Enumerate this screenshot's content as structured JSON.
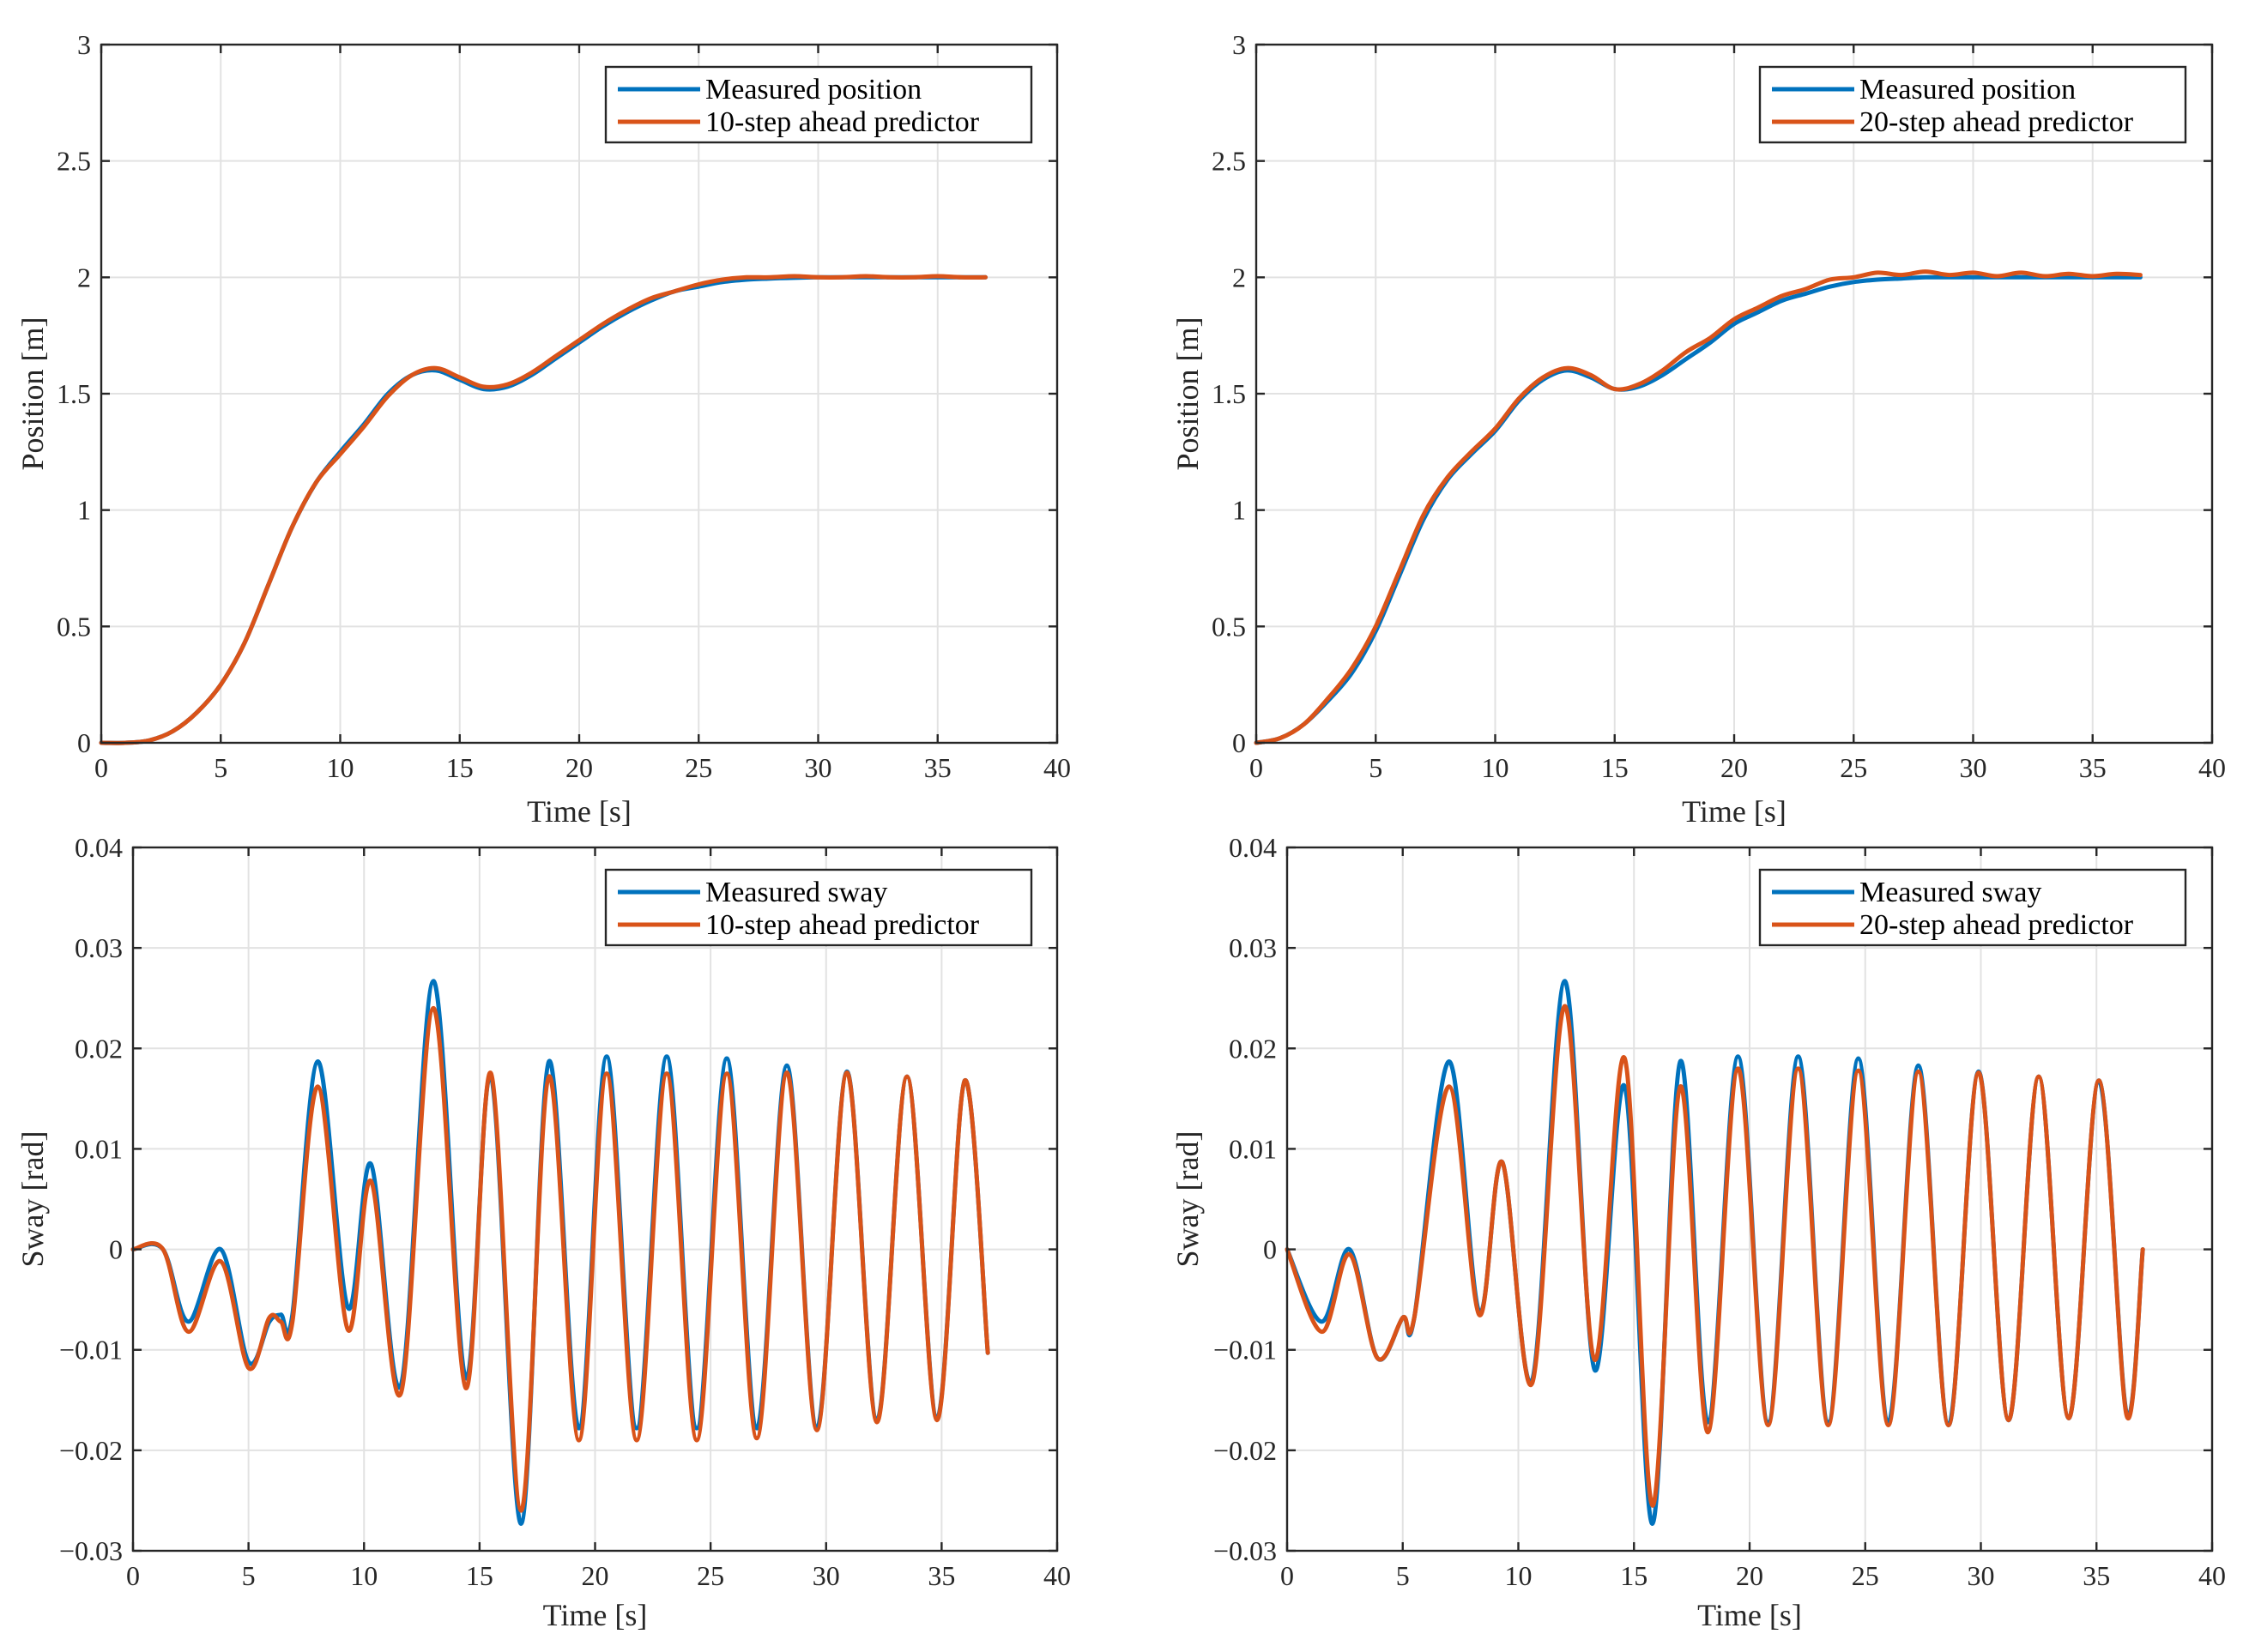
{
  "colors": {
    "measured": "#0072BD",
    "predictor": "#D95319"
  },
  "chart_data": [
    {
      "id": "position-10",
      "type": "line",
      "xlabel": "Time [s]",
      "ylabel": "Position [m]",
      "xlim": [
        0,
        40
      ],
      "ylim": [
        0,
        3
      ],
      "xticks": [
        0,
        5,
        10,
        15,
        20,
        25,
        30,
        35,
        40
      ],
      "yticks": [
        0,
        0.5,
        1,
        1.5,
        2,
        2.5,
        3
      ],
      "ytick_labels": [
        "0",
        "0.5",
        "1",
        "1.5",
        "2",
        "2.5",
        "3"
      ],
      "grid": true,
      "legend_position": "top-right",
      "legend": [
        "Measured position",
        "10-step ahead predictor"
      ],
      "series": [
        {
          "name": "Measured position",
          "x": [
            0,
            1,
            2,
            3,
            4,
            5,
            6,
            7,
            8,
            9,
            10,
            11,
            12,
            13,
            14,
            15,
            16,
            17,
            18,
            19,
            20,
            21,
            22,
            23,
            24,
            25,
            26,
            27,
            28,
            29,
            30,
            31,
            32,
            33,
            34,
            35,
            36,
            37
          ],
          "y": [
            0,
            0,
            0.01,
            0.05,
            0.13,
            0.25,
            0.43,
            0.68,
            0.93,
            1.12,
            1.25,
            1.37,
            1.5,
            1.58,
            1.6,
            1.56,
            1.52,
            1.53,
            1.58,
            1.65,
            1.72,
            1.79,
            1.85,
            1.9,
            1.94,
            1.96,
            1.98,
            1.99,
            1.995,
            1.998,
            2,
            2,
            2,
            2,
            2,
            2,
            2,
            2
          ]
        },
        {
          "name": "10-step ahead predictor",
          "x": [
            0,
            1,
            2,
            3,
            4,
            5,
            6,
            7,
            8,
            9,
            10,
            11,
            12,
            13,
            14,
            15,
            16,
            17,
            18,
            19,
            20,
            21,
            22,
            23,
            24,
            25,
            26,
            27,
            28,
            29,
            30,
            31,
            32,
            33,
            34,
            35,
            36,
            37
          ],
          "y": [
            0,
            0,
            0.01,
            0.05,
            0.13,
            0.25,
            0.43,
            0.68,
            0.93,
            1.12,
            1.24,
            1.36,
            1.49,
            1.58,
            1.61,
            1.57,
            1.53,
            1.54,
            1.59,
            1.66,
            1.73,
            1.8,
            1.86,
            1.91,
            1.94,
            1.97,
            1.99,
            2,
            2,
            2.005,
            2,
            2,
            2.005,
            2,
            2,
            2.005,
            2,
            2
          ]
        }
      ]
    },
    {
      "id": "position-20",
      "type": "line",
      "xlabel": "Time [s]",
      "ylabel": "Position [m]",
      "xlim": [
        0,
        40
      ],
      "ylim": [
        0,
        3
      ],
      "xticks": [
        0,
        5,
        10,
        15,
        20,
        25,
        30,
        35,
        40
      ],
      "yticks": [
        0,
        0.5,
        1,
        1.5,
        2,
        2.5,
        3
      ],
      "ytick_labels": [
        "0",
        "0.5",
        "1",
        "1.5",
        "2",
        "2.5",
        "3"
      ],
      "grid": true,
      "legend_position": "top-right",
      "legend": [
        "Measured position",
        "20-step ahead predictor"
      ],
      "series": [
        {
          "name": "Measured position",
          "x": [
            0,
            1,
            2,
            3,
            4,
            5,
            6,
            7,
            8,
            9,
            10,
            11,
            12,
            13,
            14,
            15,
            16,
            17,
            18,
            19,
            20,
            21,
            22,
            23,
            24,
            25,
            26,
            27,
            28,
            29,
            30,
            31,
            32,
            33,
            34,
            35,
            36,
            37
          ],
          "y": [
            0,
            0.02,
            0.08,
            0.18,
            0.3,
            0.48,
            0.72,
            0.96,
            1.13,
            1.24,
            1.34,
            1.47,
            1.56,
            1.6,
            1.57,
            1.52,
            1.53,
            1.58,
            1.65,
            1.72,
            1.8,
            1.85,
            1.9,
            1.93,
            1.96,
            1.98,
            1.99,
            1.995,
            2,
            2,
            2,
            2,
            2,
            2,
            2,
            2,
            2,
            2
          ]
        },
        {
          "name": "20-step ahead predictor",
          "x": [
            0,
            1,
            2,
            3,
            4,
            5,
            6,
            7,
            8,
            9,
            10,
            11,
            12,
            13,
            14,
            15,
            16,
            17,
            18,
            19,
            20,
            21,
            22,
            23,
            24,
            25,
            26,
            27,
            28,
            29,
            30,
            31,
            32,
            33,
            34,
            35,
            36,
            37
          ],
          "y": [
            0,
            0.02,
            0.08,
            0.19,
            0.32,
            0.5,
            0.74,
            0.98,
            1.14,
            1.25,
            1.35,
            1.48,
            1.57,
            1.61,
            1.58,
            1.52,
            1.54,
            1.6,
            1.68,
            1.74,
            1.82,
            1.87,
            1.92,
            1.95,
            1.99,
            2,
            2.02,
            2.01,
            2.025,
            2.01,
            2.02,
            2.005,
            2.02,
            2.005,
            2.015,
            2.005,
            2.015,
            2.01
          ]
        }
      ]
    },
    {
      "id": "sway-10",
      "type": "line",
      "xlabel": "Time [s]",
      "ylabel": "Sway [rad]",
      "xlim": [
        0,
        40
      ],
      "ylim": [
        -0.03,
        0.04
      ],
      "xticks": [
        0,
        5,
        10,
        15,
        20,
        25,
        30,
        35,
        40
      ],
      "yticks": [
        -0.03,
        -0.02,
        -0.01,
        0,
        0.01,
        0.02,
        0.03,
        0.04
      ],
      "ytick_labels": [
        "−0.03",
        "−0.02",
        "−0.01",
        "0",
        "0.01",
        "0.02",
        "0.03",
        "0.04"
      ],
      "grid": true,
      "legend_position": "top-right",
      "legend": [
        "Measured sway",
        "10-step ahead predictor"
      ],
      "series": [
        {
          "name": "Measured sway",
          "x": [
            0,
            1.3,
            2.4,
            3.8,
            5.0,
            5.9,
            6.4,
            6.9,
            8.0,
            9.3,
            10.3,
            11.6,
            13.0,
            14.4,
            15.5,
            16.8,
            18.0,
            19.3,
            20.5,
            21.8,
            23.1,
            24.4,
            25.7,
            27.0,
            28.3,
            29.6,
            30.9,
            32.2,
            33.5,
            34.8,
            36.0,
            37.0
          ],
          "y": [
            0,
            0,
            -0.0072,
            0,
            -0.0112,
            -0.0072,
            -0.0065,
            -0.0065,
            0.0187,
            -0.0058,
            0.0085,
            -0.0135,
            0.0267,
            -0.0128,
            0.0172,
            -0.0273,
            0.0187,
            -0.0178,
            0.0192,
            -0.0178,
            0.0192,
            -0.0178,
            0.019,
            -0.0178,
            0.0183,
            -0.0178,
            0.0177,
            -0.017,
            0.0172,
            -0.0168,
            0.0168,
            -0.0103
          ]
        },
        {
          "name": "10-step ahead predictor",
          "x": [
            0,
            1.3,
            2.4,
            3.8,
            5.0,
            5.9,
            6.4,
            6.9,
            8.0,
            9.3,
            10.3,
            11.6,
            13.0,
            14.4,
            15.5,
            16.8,
            18.0,
            19.3,
            20.5,
            21.8,
            23.1,
            24.4,
            25.7,
            27.0,
            28.3,
            29.6,
            30.9,
            32.2,
            33.5,
            34.8,
            36.0,
            37.0
          ],
          "y": [
            0,
            0,
            -0.0082,
            -0.0012,
            -0.0118,
            -0.0068,
            -0.0072,
            -0.0072,
            0.0162,
            -0.008,
            0.0068,
            -0.0143,
            0.024,
            -0.0138,
            0.0175,
            -0.026,
            0.0172,
            -0.019,
            0.0175,
            -0.019,
            0.0175,
            -0.019,
            0.0175,
            -0.0188,
            0.0176,
            -0.018,
            0.0176,
            -0.0172,
            0.0172,
            -0.017,
            0.0168,
            -0.0103
          ]
        }
      ]
    },
    {
      "id": "sway-20",
      "type": "line",
      "xlabel": "Time [s]",
      "ylabel": "Sway [rad]",
      "xlim": [
        0,
        40
      ],
      "ylim": [
        -0.03,
        0.04
      ],
      "xticks": [
        0,
        5,
        10,
        15,
        20,
        25,
        30,
        35,
        40
      ],
      "yticks": [
        -0.03,
        -0.02,
        -0.01,
        0,
        0.01,
        0.02,
        0.03,
        0.04
      ],
      "ytick_labels": [
        "−0.03",
        "−0.02",
        "−0.01",
        "0",
        "0.01",
        "0.02",
        "0.03",
        "0.04"
      ],
      "grid": true,
      "legend_position": "top-right",
      "legend": [
        "Measured sway",
        "20-step ahead predictor"
      ],
      "series": [
        {
          "name": "Measured sway",
          "x": [
            0,
            1.5,
            2.7,
            3.9,
            5.0,
            5.5,
            7.0,
            8.3,
            9.3,
            10.6,
            12.0,
            13.3,
            14.6,
            15.8,
            17.0,
            18.2,
            19.5,
            20.8,
            22.1,
            23.4,
            24.7,
            26.0,
            27.3,
            28.6,
            29.9,
            31.2,
            32.5,
            33.8,
            35.1,
            36.3,
            37.0
          ],
          "y": [
            0,
            -0.0072,
            0,
            -0.0108,
            -0.0068,
            -0.0068,
            0.0187,
            -0.0062,
            0.0087,
            -0.013,
            0.0267,
            -0.012,
            0.0162,
            -0.0273,
            0.0187,
            -0.0172,
            0.0192,
            -0.0172,
            0.0192,
            -0.0172,
            0.019,
            -0.0172,
            0.0183,
            -0.0175,
            0.0177,
            -0.017,
            0.0172,
            -0.0168,
            0.0168,
            -0.0163,
            0
          ]
        },
        {
          "name": "20-step ahead predictor",
          "x": [
            0,
            1.5,
            2.7,
            3.9,
            5.0,
            5.5,
            7.0,
            8.3,
            9.3,
            10.6,
            12.0,
            13.3,
            14.6,
            15.8,
            17.0,
            18.2,
            19.5,
            20.8,
            22.1,
            23.4,
            24.7,
            26.0,
            27.3,
            28.6,
            29.9,
            31.2,
            32.5,
            33.8,
            35.1,
            36.3,
            37.0
          ],
          "y": [
            0,
            -0.0082,
            -0.0005,
            -0.0108,
            -0.0068,
            -0.0068,
            0.0162,
            -0.0065,
            0.0087,
            -0.0133,
            0.0242,
            -0.011,
            0.019,
            -0.0255,
            0.0162,
            -0.0182,
            0.018,
            -0.0175,
            0.018,
            -0.0175,
            0.0178,
            -0.0175,
            0.0177,
            -0.0175,
            0.0176,
            -0.017,
            0.0172,
            -0.0168,
            0.0168,
            -0.0165,
            0
          ]
        }
      ]
    }
  ]
}
